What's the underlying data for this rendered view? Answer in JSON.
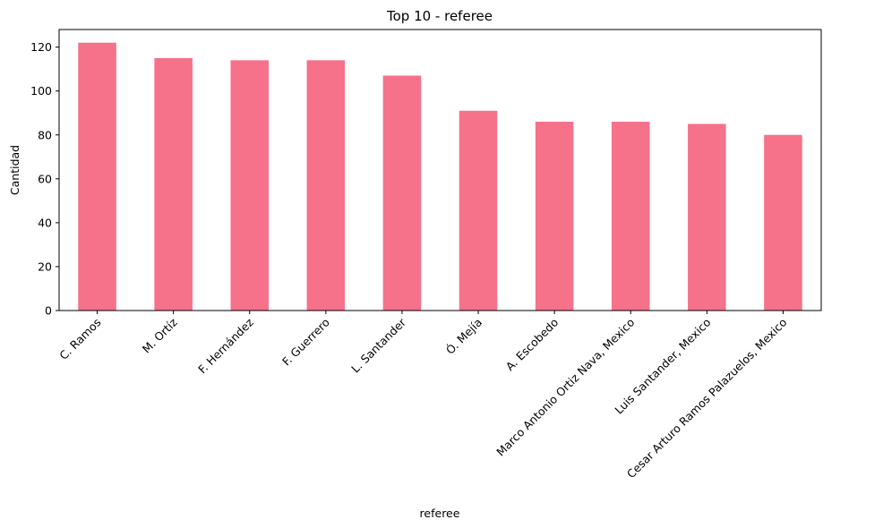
{
  "chart_data": {
    "type": "bar",
    "title": "Top 10 - referee",
    "xlabel": "referee",
    "ylabel": "Cantidad",
    "categories": [
      "C. Ramos",
      "M. Ortíz",
      "F. Hernández",
      "F. Guerrero",
      "L. Santander",
      "Ó. Mejía",
      "A. Escobedo",
      "Marco Antonio Ortiz Nava, Mexico",
      "Luis Santander, Mexico",
      "Cesar Arturo Ramos Palazuelos, Mexico"
    ],
    "values": [
      122,
      115,
      114,
      114,
      107,
      91,
      86,
      86,
      85,
      80
    ],
    "ylim": [
      0,
      128
    ],
    "yticks": [
      0,
      20,
      40,
      60,
      80,
      100,
      120
    ],
    "bar_color": "#f6718a",
    "grid": false,
    "legend": "none"
  }
}
